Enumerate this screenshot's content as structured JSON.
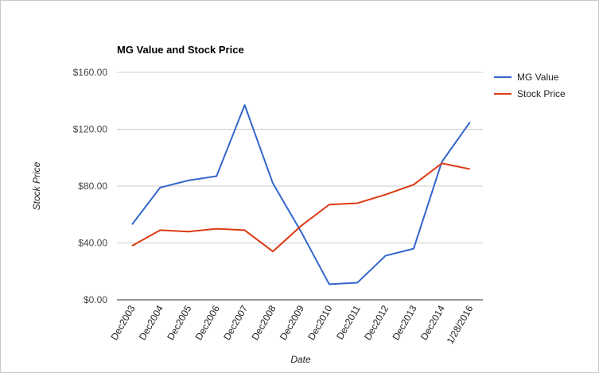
{
  "chart_data": {
    "type": "line",
    "title": "MG Value and Stock Price",
    "xlabel": "Date",
    "ylabel": "Stock Price",
    "categories": [
      "Dec2003",
      "Dec2004",
      "Dec2005",
      "Dec2006",
      "Dec2007",
      "Dec2008",
      "Dec2009",
      "Dec2010",
      "Dec2011",
      "Dec2012",
      "Dec2013",
      "Dec2014",
      "1/28/2016"
    ],
    "ylim": [
      0,
      160
    ],
    "yticks": [
      "$0.00",
      "$40.00",
      "$80.00",
      "$120.00",
      "$160.00"
    ],
    "ytick_values": [
      0,
      40,
      80,
      120,
      160
    ],
    "grid": true,
    "legend_position": "right",
    "series": [
      {
        "name": "MG Value",
        "color": "#3366cc",
        "values": [
          53,
          79,
          84,
          87,
          137,
          82,
          48,
          11,
          12,
          31,
          36,
          97,
          125
        ]
      },
      {
        "name": "Stock Price",
        "color": "#dc3912",
        "values": [
          38,
          49,
          48,
          50,
          49,
          34,
          52,
          67,
          68,
          74,
          81,
          96,
          92
        ]
      }
    ]
  }
}
